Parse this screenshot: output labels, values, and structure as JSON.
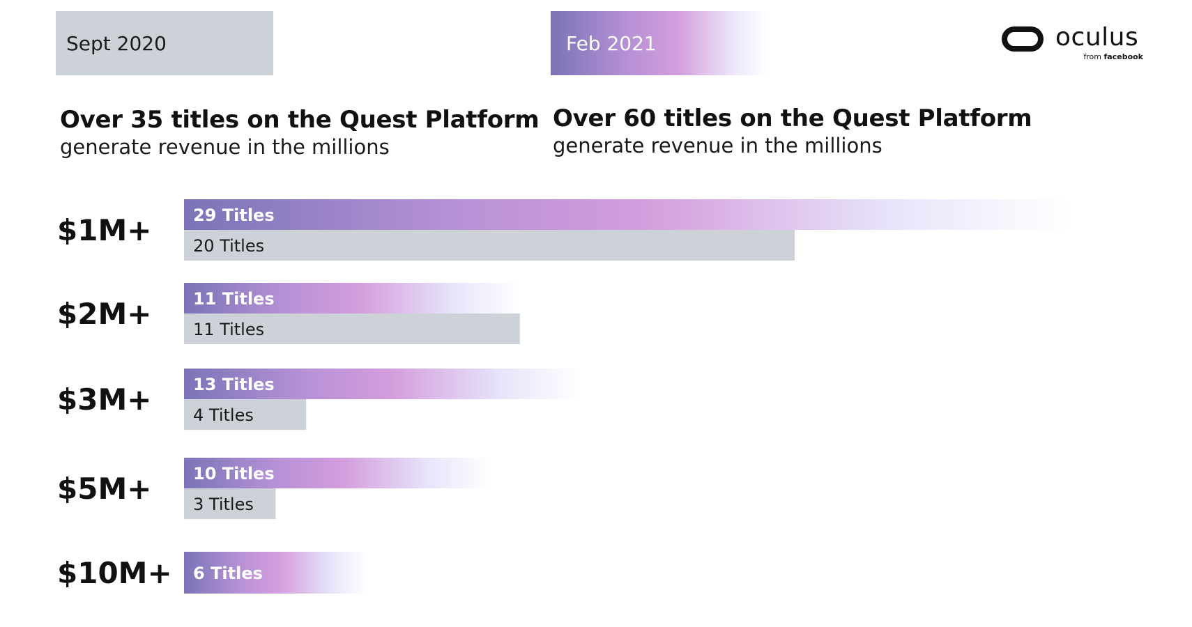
{
  "header": {
    "sept_label": "Sept 2020",
    "feb_label": "Feb 2021"
  },
  "headlines": {
    "left_title": "Over 35 titles on the Quest Platform",
    "left_sub": "generate revenue in the millions",
    "right_title": "Over 60 titles on the Quest Platform",
    "right_sub": "generate revenue in the millions"
  },
  "logo": {
    "wordmark": "oculus",
    "tagline_from": "from",
    "tagline_brand": "facebook",
    "icon": "oculus-headset-icon"
  },
  "colors": {
    "sept_bar": "#cdd1d8",
    "feb_gradient_start": "#7a74b6",
    "feb_gradient_mid": "#d39ddc",
    "feb_gradient_end": "#ede8fb"
  },
  "chart_data": {
    "type": "bar",
    "orientation": "horizontal",
    "categories": [
      "$1M+",
      "$2M+",
      "$3M+",
      "$5M+",
      "$10M+"
    ],
    "series": [
      {
        "name": "Feb 2021",
        "values": [
          29,
          11,
          13,
          10,
          6
        ],
        "labels": [
          "29 Titles",
          "11 Titles",
          "13 Titles",
          "10 Titles",
          "6 Titles"
        ]
      },
      {
        "name": "Sept 2020",
        "values": [
          20,
          11,
          4,
          3,
          null
        ],
        "labels": [
          "20 Titles",
          "11 Titles",
          "4 Titles",
          "3 Titles",
          null
        ]
      }
    ],
    "legend": "top",
    "grid": false
  }
}
